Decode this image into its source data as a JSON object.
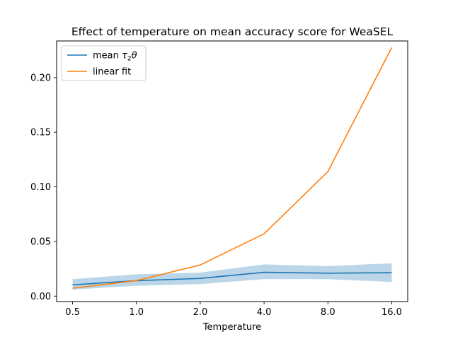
{
  "chart_data": {
    "type": "line",
    "title": "Effect of temperature on mean accuracy score for WeaSEL",
    "xlabel": "Temperature",
    "ylabel": "",
    "x": [
      0.5,
      1.0,
      2.0,
      4.0,
      8.0,
      16.0
    ],
    "x_tick_labels": [
      "0.5",
      "1.0",
      "2.0",
      "4.0",
      "8.0",
      "16.0"
    ],
    "x_scale": "log2",
    "ylim": [
      -0.005,
      0.2335
    ],
    "y_ticks": [
      0.0,
      0.05,
      0.1,
      0.15,
      0.2
    ],
    "y_tick_labels": [
      "0.00",
      "0.05",
      "0.10",
      "0.15",
      "0.20"
    ],
    "grid": false,
    "legend_position": "upper-left",
    "series": [
      {
        "name": "mean τ₂θ",
        "legend_base": "mean ",
        "legend_tau": "τ",
        "legend_sub": "2",
        "legend_theta": "θ",
        "color": "#1f77b4",
        "values": [
          0.0103,
          0.0141,
          0.0162,
          0.0218,
          0.021,
          0.0214
        ],
        "band_lower": [
          0.006,
          0.0095,
          0.011,
          0.0155,
          0.0155,
          0.013
        ],
        "band_upper": [
          0.0155,
          0.02,
          0.0215,
          0.029,
          0.0275,
          0.03
        ],
        "band_color": "#1f77b4"
      },
      {
        "name": "linear fit",
        "color": "#ff7f0e",
        "values": [
          0.0072,
          0.0142,
          0.0285,
          0.057,
          0.114,
          0.2275
        ]
      }
    ]
  }
}
